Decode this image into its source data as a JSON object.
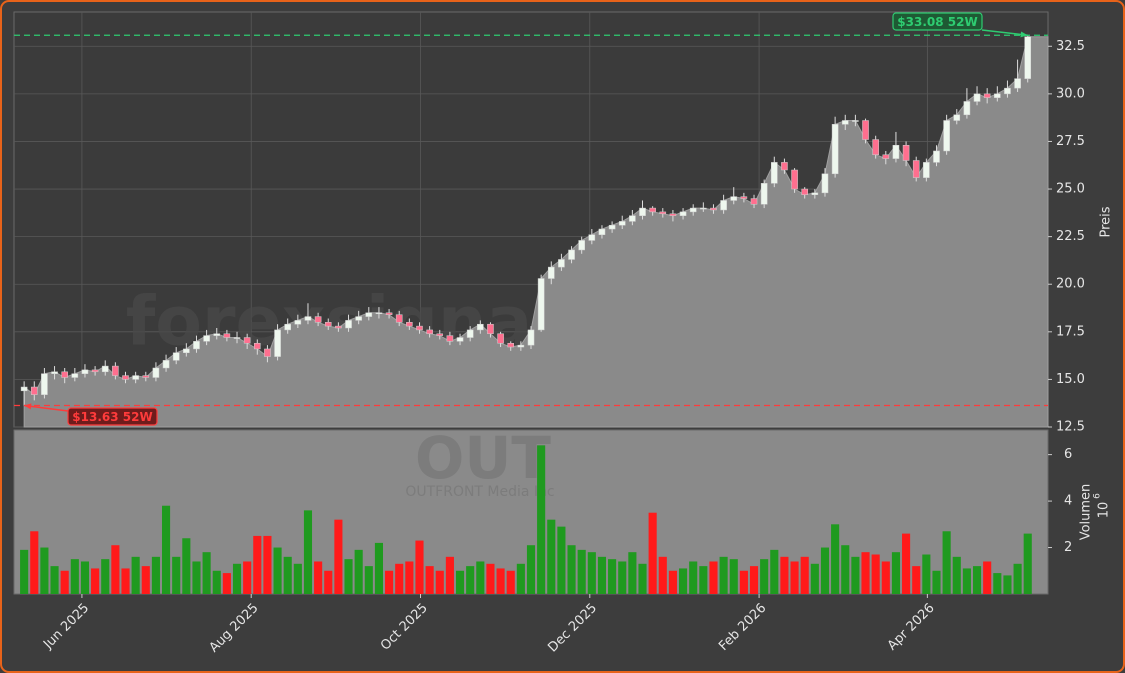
{
  "chart_data": {
    "type": "candlestick",
    "watermark": "forexsignale.trade",
    "symbol": "OUT",
    "company": "OUTFRONT Media Inc",
    "y_label": "Preis",
    "volume_label": "Volumen",
    "volume_scale": {
      "base": "10",
      "exponent": "6"
    },
    "xlim": [
      -1,
      101
    ],
    "xticks": [
      {
        "value": 5.7,
        "label": "Jun 2025"
      },
      {
        "value": 22.4,
        "label": "Aug 2025"
      },
      {
        "value": 39.1,
        "label": "Oct 2025"
      },
      {
        "value": 55.8,
        "label": "Dec 2025"
      },
      {
        "value": 72.5,
        "label": "Feb 2026"
      },
      {
        "value": 89.1,
        "label": "Apr 2026"
      }
    ],
    "ylim": [
      12.5,
      34.3
    ],
    "yticks": [
      12.5,
      {
        "value": 15,
        "label": "15.0"
      },
      17.5,
      {
        "value": 20,
        "label": "20.0"
      },
      22.5,
      {
        "value": 25,
        "label": "25.0"
      },
      27.5,
      {
        "value": 30,
        "label": "30.0"
      },
      32.5
    ],
    "volume_ylim": [
      0,
      7.06
    ],
    "volume_yticks": [
      2,
      4,
      6
    ],
    "grid": true,
    "area_color": "#8a8a8a",
    "candle_up_color": "#eef7ee",
    "candle_down_color": "#ff6f8f",
    "volume_up_color": "#1f9a1f",
    "volume_down_color": "#ff1a1a",
    "open": [
      14.4,
      14.6,
      14.2,
      15.3,
      15.4,
      15.1,
      15.3,
      15.5,
      15.4,
      15.7,
      15.2,
      15.0,
      15.2,
      15.1,
      15.6,
      16.0,
      16.4,
      16.6,
      17.0,
      17.3,
      17.4,
      17.2,
      17.2,
      16.9,
      16.6,
      16.2,
      17.6,
      17.9,
      18.1,
      18.3,
      18.0,
      17.8,
      17.7,
      18.1,
      18.3,
      18.5,
      18.5,
      18.4,
      18.0,
      17.8,
      17.6,
      17.4,
      17.3,
      17.0,
      17.2,
      17.6,
      17.9,
      17.4,
      16.9,
      16.7,
      16.8,
      17.6,
      20.3,
      20.9,
      21.3,
      21.8,
      22.3,
      22.6,
      22.9,
      23.1,
      23.3,
      23.6,
      24.0,
      23.8,
      23.7,
      23.6,
      23.8,
      24.0,
      24.0,
      23.9,
      24.4,
      24.6,
      24.5,
      24.2,
      25.3,
      26.4,
      26.0,
      25.0,
      24.7,
      24.8,
      25.8,
      28.4,
      28.6,
      28.6,
      27.6,
      26.8,
      26.6,
      27.3,
      26.5,
      25.6,
      26.4,
      27.0,
      28.6,
      28.9,
      29.6,
      30.0,
      29.8,
      30.0,
      30.3,
      30.8
    ],
    "high": [
      14.9,
      14.9,
      15.6,
      15.7,
      15.6,
      15.6,
      15.8,
      15.7,
      16.0,
      15.9,
      15.4,
      15.4,
      15.4,
      15.9,
      16.3,
      16.7,
      16.9,
      17.3,
      17.6,
      17.7,
      17.6,
      17.5,
      17.4,
      17.1,
      16.8,
      17.9,
      18.2,
      18.4,
      19.0,
      18.5,
      18.2,
      18.0,
      18.4,
      18.6,
      18.8,
      18.8,
      18.7,
      18.6,
      18.2,
      18.0,
      17.8,
      17.6,
      17.5,
      17.4,
      17.8,
      18.1,
      18.0,
      17.5,
      17.0,
      17.0,
      17.8,
      20.5,
      21.2,
      21.6,
      22.0,
      22.5,
      22.9,
      23.1,
      23.3,
      23.6,
      23.9,
      24.4,
      24.1,
      24.0,
      23.9,
      24.0,
      24.2,
      24.3,
      24.2,
      24.7,
      25.1,
      24.8,
      24.7,
      25.5,
      26.7,
      26.6,
      26.1,
      25.1,
      25.0,
      26.1,
      28.8,
      28.9,
      28.9,
      28.7,
      27.8,
      27.0,
      28.0,
      27.5,
      26.7,
      26.6,
      27.3,
      28.9,
      29.2,
      30.3,
      30.4,
      30.3,
      30.4,
      30.7,
      31.8,
      33.08
    ],
    "low": [
      13.63,
      13.9,
      14.0,
      15.0,
      14.8,
      14.9,
      15.1,
      15.2,
      15.2,
      15.0,
      14.8,
      14.8,
      14.9,
      14.9,
      15.4,
      15.8,
      16.2,
      16.4,
      16.8,
      17.1,
      17.0,
      16.9,
      16.6,
      16.3,
      15.9,
      16.0,
      17.4,
      17.7,
      17.9,
      17.8,
      17.6,
      17.5,
      17.5,
      17.9,
      18.1,
      18.2,
      18.2,
      17.8,
      17.6,
      17.4,
      17.2,
      17.1,
      16.8,
      16.8,
      17.0,
      17.4,
      17.2,
      16.7,
      16.5,
      16.5,
      16.6,
      17.5,
      20.0,
      20.7,
      21.1,
      21.6,
      22.1,
      22.4,
      22.7,
      22.9,
      23.1,
      23.4,
      23.6,
      23.5,
      23.3,
      23.4,
      23.6,
      23.8,
      23.7,
      23.7,
      24.2,
      24.3,
      24.0,
      24.0,
      25.1,
      25.8,
      24.8,
      24.5,
      24.5,
      24.6,
      25.6,
      28.1,
      28.3,
      27.4,
      26.6,
      26.3,
      26.4,
      26.2,
      25.4,
      25.4,
      26.2,
      26.8,
      28.4,
      28.7,
      29.4,
      29.5,
      29.6,
      29.8,
      30.1,
      30.6
    ],
    "close": [
      14.6,
      14.2,
      15.3,
      15.4,
      15.1,
      15.3,
      15.5,
      15.4,
      15.7,
      15.2,
      15.0,
      15.2,
      15.1,
      15.6,
      16.0,
      16.4,
      16.6,
      17.0,
      17.3,
      17.4,
      17.2,
      17.2,
      16.9,
      16.6,
      16.2,
      17.6,
      17.9,
      18.1,
      18.3,
      18.0,
      17.8,
      17.7,
      18.1,
      18.3,
      18.5,
      18.5,
      18.4,
      18.0,
      17.8,
      17.6,
      17.4,
      17.3,
      17.0,
      17.2,
      17.6,
      17.9,
      17.4,
      16.9,
      16.7,
      16.8,
      17.6,
      20.3,
      20.9,
      21.3,
      21.8,
      22.3,
      22.6,
      22.9,
      23.1,
      23.3,
      23.6,
      24.0,
      23.8,
      23.7,
      23.6,
      23.8,
      24.0,
      24.0,
      23.9,
      24.4,
      24.6,
      24.5,
      24.2,
      25.3,
      26.4,
      26.0,
      25.0,
      24.7,
      24.8,
      25.8,
      28.4,
      28.6,
      28.6,
      27.6,
      26.8,
      26.6,
      27.3,
      26.5,
      25.6,
      26.4,
      27.0,
      28.6,
      28.9,
      29.6,
      30.0,
      29.8,
      30.0,
      30.3,
      30.8,
      33.0
    ],
    "volume": [
      1.9,
      2.7,
      2.0,
      1.2,
      1.0,
      1.5,
      1.4,
      1.1,
      1.5,
      2.1,
      1.1,
      1.6,
      1.2,
      1.6,
      3.8,
      1.6,
      2.4,
      1.4,
      1.8,
      1.0,
      0.9,
      1.3,
      1.4,
      2.5,
      2.5,
      2.0,
      1.6,
      1.3,
      3.6,
      1.4,
      1.0,
      3.2,
      1.5,
      1.9,
      1.2,
      2.2,
      1.0,
      1.3,
      1.4,
      2.3,
      1.2,
      1.0,
      1.6,
      1.0,
      1.2,
      1.4,
      1.3,
      1.1,
      1.0,
      1.3,
      2.1,
      6.4,
      3.2,
      2.9,
      2.1,
      1.9,
      1.8,
      1.6,
      1.5,
      1.4,
      1.8,
      1.3,
      3.5,
      1.6,
      1.0,
      1.1,
      1.4,
      1.2,
      1.4,
      1.6,
      1.5,
      1.0,
      1.2,
      1.5,
      1.9,
      1.6,
      1.4,
      1.6,
      1.3,
      2.0,
      3.0,
      2.1,
      1.6,
      1.8,
      1.7,
      1.4,
      1.8,
      2.6,
      1.2,
      1.7,
      1.0,
      2.7,
      1.6,
      1.1,
      1.2,
      1.4,
      0.9,
      0.8,
      1.3,
      2.6
    ],
    "annotations": [
      {
        "value": 33.08,
        "label": "$33.08 52W",
        "color": "#2ecc71",
        "fill": "#1e5a34"
      },
      {
        "value": 13.63,
        "label": "$13.63 52W",
        "color": "#ff3b3b",
        "fill": "#6e1c1c"
      }
    ]
  }
}
